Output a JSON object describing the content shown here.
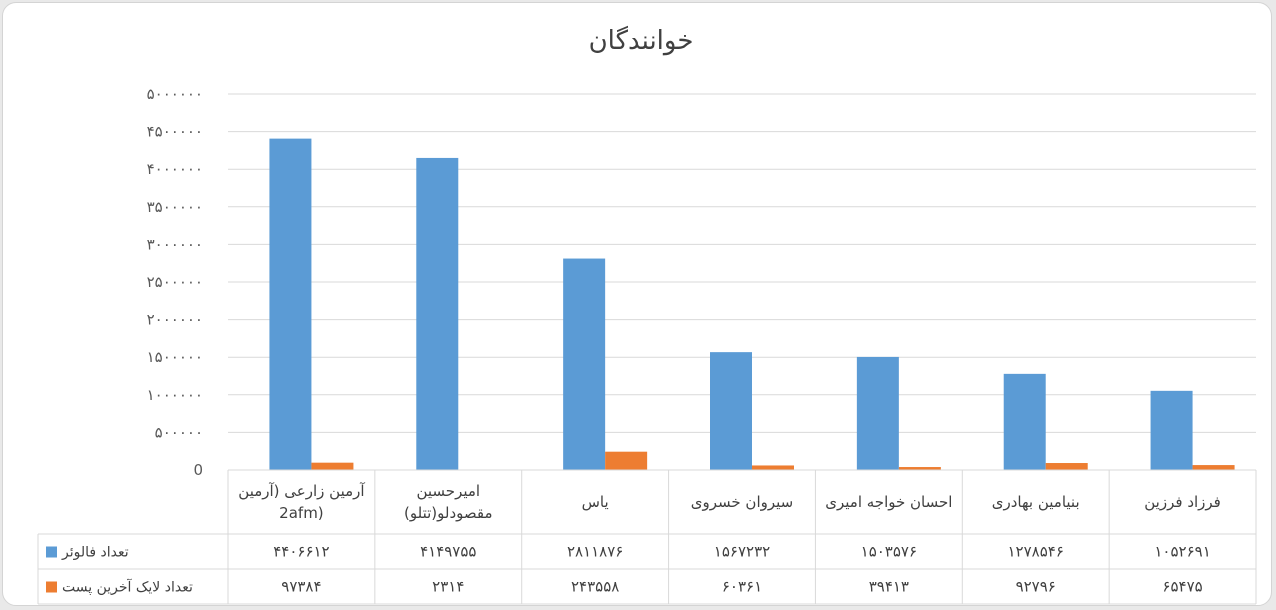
{
  "chart_data": {
    "type": "bar",
    "title": "خوانندگان",
    "categories": [
      [
        "آرمین زارعی (آرمین",
        "2afm)"
      ],
      [
        "امیرحسین",
        "مقصودلو(تتلو)"
      ],
      [
        "یاس"
      ],
      [
        "سیروان خسروی"
      ],
      [
        "احسان خواجه امیری"
      ],
      [
        "بنیامین بهادری"
      ],
      [
        "فرزاد فرزین"
      ]
    ],
    "series": [
      {
        "name": "تعداد فالوئر",
        "color": "#5b9bd5",
        "values": [
          4406612,
          4149755,
          2811876,
          1567232,
          1503576,
          1278546,
          1052691
        ],
        "labels": [
          "۴۴۰۶۶۱۲",
          "۴۱۴۹۷۵۵",
          "۲۸۱۱۸۷۶",
          "۱۵۶۷۲۳۲",
          "۱۵۰۳۵۷۶",
          "۱۲۷۸۵۴۶",
          "۱۰۵۲۶۹۱"
        ]
      },
      {
        "name": "تعداد لایک آخرین پست",
        "color": "#ed7d31",
        "values": [
          97384,
          2314,
          243558,
          60361,
          39413,
          92796,
          65475
        ],
        "labels": [
          "۹۷۳۸۴",
          "۲۳۱۴",
          "۲۴۳۵۵۸",
          "۶۰۳۶۱",
          "۳۹۴۱۳",
          "۹۲۷۹۶",
          "۶۵۴۷۵"
        ]
      }
    ],
    "ylim": [
      0,
      5000000
    ],
    "y_ticks": [
      0,
      500000,
      1000000,
      1500000,
      2000000,
      2500000,
      3000000,
      3500000,
      4000000,
      4500000,
      5000000
    ],
    "y_tick_labels": [
      "0",
      "۵۰۰۰۰۰",
      "۱۰۰۰۰۰۰",
      "۱۵۰۰۰۰۰",
      "۲۰۰۰۰۰۰",
      "۲۵۰۰۰۰۰",
      "۳۰۰۰۰۰۰",
      "۳۵۰۰۰۰۰",
      "۴۰۰۰۰۰۰",
      "۴۵۰۰۰۰۰",
      "۵۰۰۰۰۰۰"
    ],
    "grid": true,
    "legend": "data-table",
    "data_table": true
  }
}
